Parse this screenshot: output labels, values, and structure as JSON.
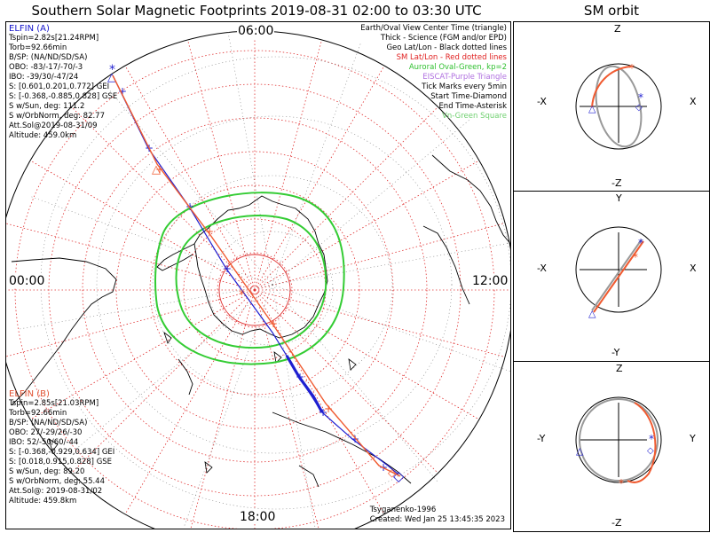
{
  "title": "Southern Solar Magnetic Footprints 2019-08-31 02:00 to 03:30 UTC",
  "orbit_title": "SM orbit",
  "mlt_labels": {
    "top": "06:00",
    "left": "00:00",
    "right": "12:00",
    "bottom": "18:00"
  },
  "elfin_a": {
    "header": "ELFIN (A)",
    "lines": [
      "Tspin=2.82s[21.24RPM]",
      "Torb=92.66min",
      "B/SP: (NA/ND/SD/SA)",
      "OBO: -83/-17/-70/-3",
      "IBO: -39/30/-47/24",
      "S: [0.601,0.201,0.772] GEI",
      "S: [-0.368,-0.885,0.828] GSE",
      "S w/Sun, deg: 111.2",
      "S w/OrbNorm, deg: 82.77",
      "Att.Sol@2019-08-31/09",
      "Altitude: 459.0km"
    ]
  },
  "elfin_b": {
    "header": "ELFIN (B)",
    "lines": [
      "Tspin=2.85s[21.03RPM]",
      "Torb=92.66min",
      "B/SP: (NA/ND/SD/SA)",
      "OBO: 27/-29/26/-30",
      "IBO: 52/-50/60/-44",
      "S: [-0.368,-0.929,0.634] GEI",
      "S: [0.018,0.915,0.828] GSE",
      "S w/Sun, deg: 89.20",
      "S w/OrbNorm, deg: 55.44",
      "Att.Sol@: 2019-08-31/02",
      "Altitude: 459.8km"
    ]
  },
  "legend": [
    {
      "text": "Earth/Oval View Center Time (triangle)",
      "style": "black"
    },
    {
      "text": "Thick - Science (FGM and/or EPD)",
      "style": "black"
    },
    {
      "text": "Geo Lat/Lon - Black dotted lines",
      "style": "black"
    },
    {
      "text": "SM Lat/Lon - Red dotted lines",
      "style": "red"
    },
    {
      "text": "Auroral Oval-Green, kp=2",
      "style": "green"
    },
    {
      "text": "EISCAT-Purple Triangle",
      "style": "purple"
    },
    {
      "text": "Tick Marks every 5min",
      "style": "black"
    },
    {
      "text": "Start Time-Diamond",
      "style": "black"
    },
    {
      "text": "End Time-Asterisk",
      "style": "black"
    },
    {
      "text": "Vn-Green Square",
      "style": "lgreen"
    }
  ],
  "credits": {
    "model": "Tsyganenko-1996",
    "created": "Created: Wed Jan 25 13:45:35 2023"
  },
  "orbit_panels": [
    {
      "top": "Z",
      "bottom": "-Z",
      "left": "-X",
      "right": "X"
    },
    {
      "top": "Y",
      "bottom": "-Y",
      "left": "-X",
      "right": "X"
    },
    {
      "top": "Z",
      "bottom": "-Z",
      "left": "-Y",
      "right": "Y"
    }
  ],
  "colors": {
    "probe_a": "#1f1fd0",
    "probe_b": "#f05a30",
    "oval": "#33cc33",
    "sm_grid": "#e03030",
    "geo_grid": "#606060"
  }
}
